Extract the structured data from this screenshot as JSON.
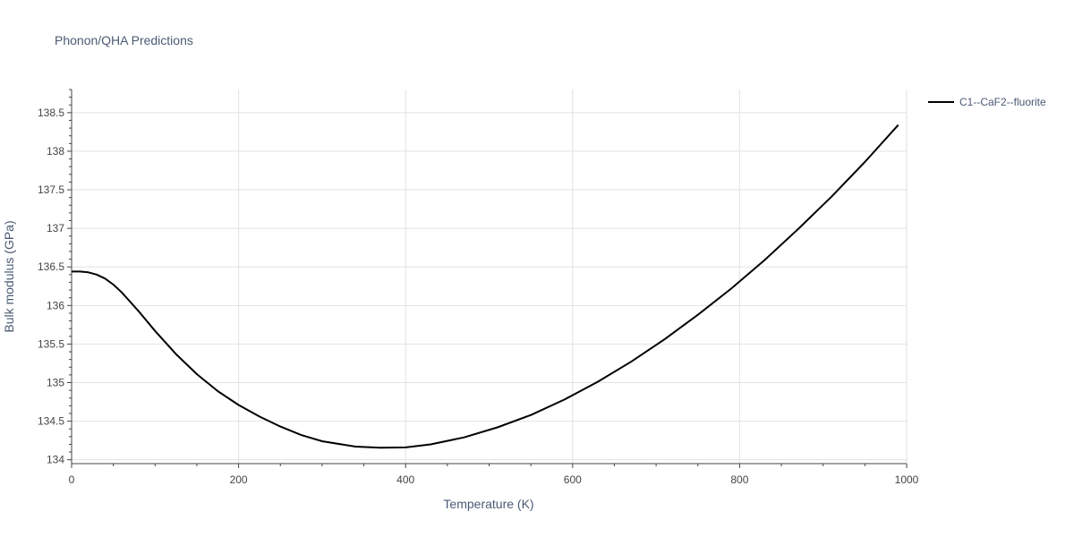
{
  "chart_data": {
    "type": "line",
    "title": "Phonon/QHA Predictions",
    "xlabel": "Temperature (K)",
    "ylabel": "Bulk modulus (GPa)",
    "xlim": [
      0,
      1000
    ],
    "ylim": [
      133.95,
      138.8
    ],
    "x_ticks": [
      0,
      200,
      400,
      600,
      800,
      1000
    ],
    "x_tick_labels": [
      "0",
      "200",
      "400",
      "600",
      "800",
      "1000"
    ],
    "y_ticks": [
      134,
      134.5,
      135,
      135.5,
      136,
      136.5,
      137,
      137.5,
      138,
      138.5
    ],
    "y_tick_labels": [
      "134",
      "134.5",
      "135",
      "135.5",
      "136",
      "136.5",
      "137",
      "137.5",
      "138",
      "138.5"
    ],
    "grid": true,
    "legend_position": "top-right",
    "line_color": "#000000",
    "series": [
      {
        "name": "C1--CaF2--fluorite",
        "x": [
          0,
          10,
          20,
          30,
          40,
          50,
          60,
          70,
          80,
          100,
          125,
          150,
          175,
          200,
          225,
          250,
          275,
          300,
          340,
          370,
          400,
          430,
          470,
          510,
          550,
          590,
          630,
          670,
          710,
          750,
          790,
          830,
          870,
          910,
          950,
          990
        ],
        "y": [
          136.44,
          136.44,
          136.43,
          136.4,
          136.35,
          136.27,
          136.17,
          136.05,
          135.93,
          135.67,
          135.37,
          135.11,
          134.89,
          134.71,
          134.56,
          134.43,
          134.32,
          134.24,
          134.17,
          134.155,
          134.16,
          134.2,
          134.29,
          134.42,
          134.58,
          134.78,
          135.01,
          135.27,
          135.56,
          135.88,
          136.22,
          136.59,
          136.99,
          137.41,
          137.86,
          138.34
        ]
      }
    ]
  }
}
